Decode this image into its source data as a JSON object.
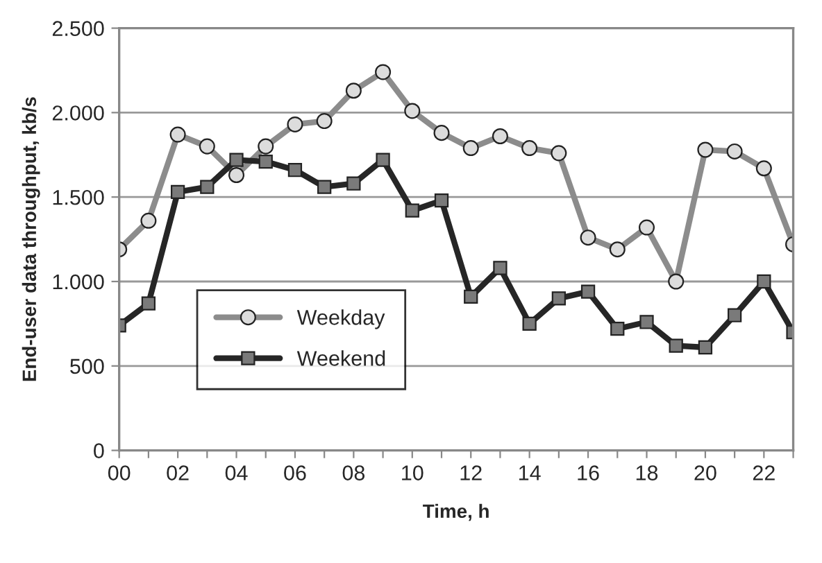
{
  "chart_data": {
    "type": "line",
    "xlabel": "Time, h",
    "ylabel": "End-user data throughput, kb/s",
    "x": [
      0,
      1,
      2,
      3,
      4,
      5,
      6,
      7,
      8,
      9,
      10,
      11,
      12,
      13,
      14,
      15,
      16,
      17,
      18,
      19,
      20,
      21,
      22,
      23
    ],
    "series": [
      {
        "name": "Weekday",
        "color": "#8c8c8c",
        "marker": "circle",
        "values": [
          1190,
          1360,
          1870,
          1800,
          1630,
          1800,
          1930,
          1950,
          2130,
          2240,
          2010,
          1880,
          1790,
          1860,
          1790,
          1760,
          1260,
          1190,
          1320,
          1000,
          1780,
          1770,
          1670,
          1220
        ]
      },
      {
        "name": "Weekend",
        "color": "#262626",
        "marker": "square",
        "values": [
          740,
          870,
          1530,
          1560,
          1720,
          1710,
          1660,
          1560,
          1580,
          1720,
          1420,
          1480,
          910,
          1080,
          750,
          900,
          940,
          720,
          760,
          620,
          610,
          800,
          1000,
          700
        ]
      }
    ],
    "xlim": [
      0,
      23
    ],
    "xticks": [
      {
        "value": 0,
        "label": "00"
      },
      {
        "value": 1,
        "label": null
      },
      {
        "value": 2,
        "label": "02"
      },
      {
        "value": 3,
        "label": null
      },
      {
        "value": 4,
        "label": "04"
      },
      {
        "value": 5,
        "label": null
      },
      {
        "value": 6,
        "label": "06"
      },
      {
        "value": 7,
        "label": null
      },
      {
        "value": 8,
        "label": "08"
      },
      {
        "value": 9,
        "label": null
      },
      {
        "value": 10,
        "label": "10"
      },
      {
        "value": 11,
        "label": null
      },
      {
        "value": 12,
        "label": "12"
      },
      {
        "value": 13,
        "label": null
      },
      {
        "value": 14,
        "label": "14"
      },
      {
        "value": 15,
        "label": null
      },
      {
        "value": 16,
        "label": "16"
      },
      {
        "value": 17,
        "label": null
      },
      {
        "value": 18,
        "label": "18"
      },
      {
        "value": 19,
        "label": null
      },
      {
        "value": 20,
        "label": "20"
      },
      {
        "value": 21,
        "label": null
      },
      {
        "value": 22,
        "label": "22"
      },
      {
        "value": 23,
        "label": null
      }
    ],
    "ylim": [
      0,
      2500
    ],
    "yticks": [
      0,
      500,
      {
        "value": 1000,
        "label": "1.000"
      },
      {
        "value": 1500,
        "label": "1.500"
      },
      {
        "value": 2000,
        "label": "2.000"
      },
      {
        "value": 2500,
        "label": "2.500"
      }
    ],
    "grid": "y",
    "legend": "bottom left",
    "line_style": "solid"
  }
}
